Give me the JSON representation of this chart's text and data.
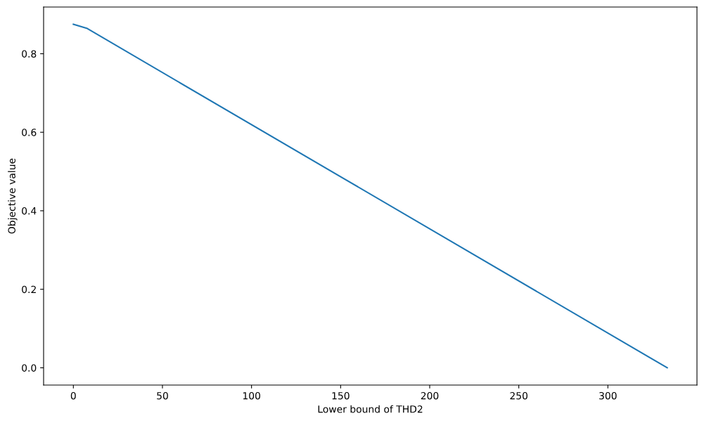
{
  "chart_data": {
    "type": "line",
    "xlabel": "Lower bound of THD2",
    "ylabel": "Objective value",
    "x": [
      0,
      7.5,
      333.3
    ],
    "series": [
      {
        "color": "#1f77b4",
        "values": [
          0.875,
          0.865,
          0
        ]
      }
    ],
    "xlim": [
      -16.7,
      350
    ],
    "xticks": [
      0,
      50,
      100,
      150,
      200,
      250,
      300
    ],
    "ylim": [
      -0.044,
      0.919
    ],
    "yticks": [
      {
        "value": 0,
        "label": "0.0"
      },
      0.2,
      0.4,
      0.6,
      0.8
    ],
    "grid": false,
    "legend": false,
    "marker": "none",
    "line_style": "solid"
  }
}
